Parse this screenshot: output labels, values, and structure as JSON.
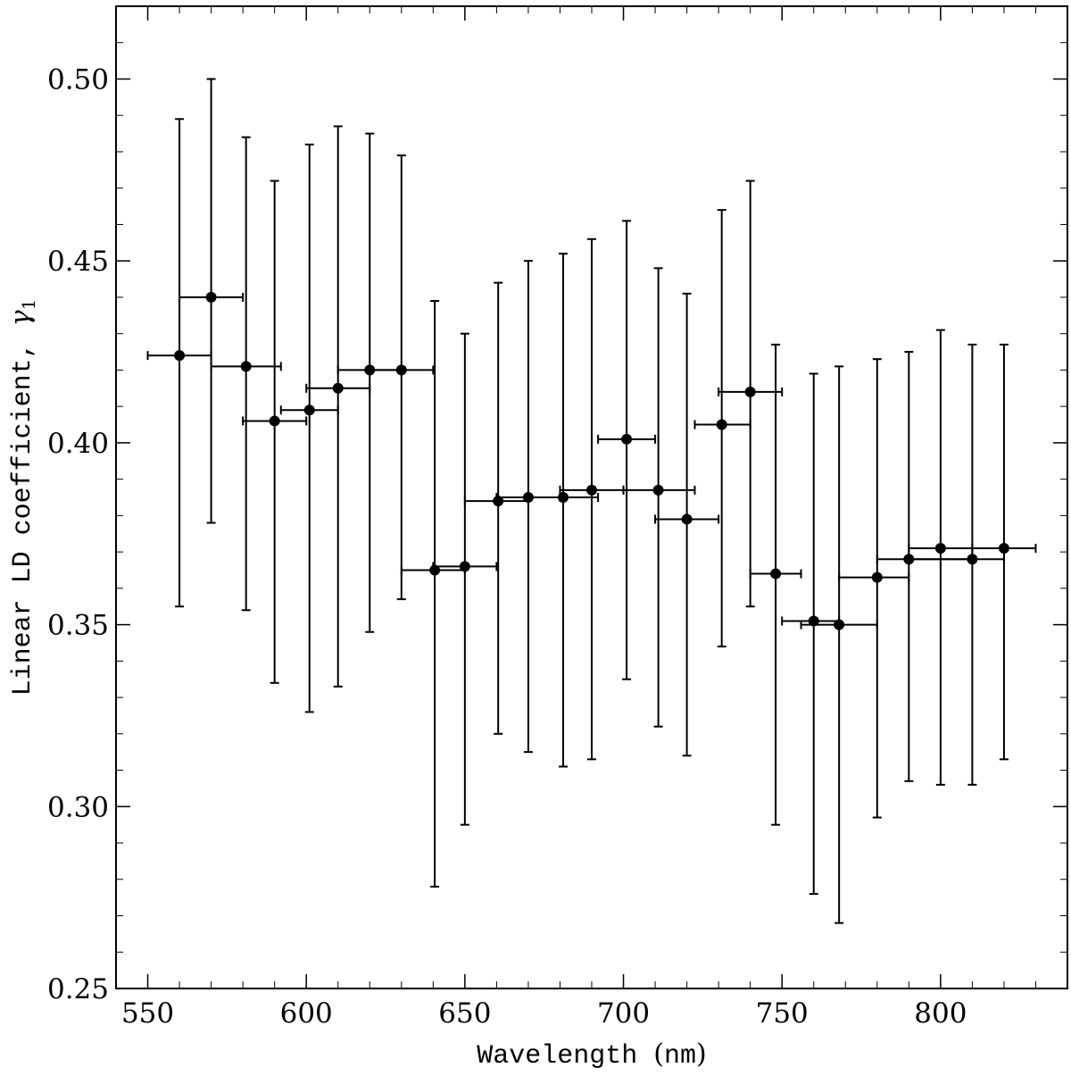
{
  "chart_data": {
    "type": "scatter",
    "title": "",
    "xlabel_main": "Wavelength",
    "xlabel_unit": "(nm)",
    "ylabel_main": "Linear LD coefficient,",
    "ylabel_symbol": "γ",
    "ylabel_subscript": "1",
    "xlim": [
      540,
      840
    ],
    "ylim": [
      0.25,
      0.52
    ],
    "x_ticks": [
      550,
      600,
      650,
      700,
      750,
      800
    ],
    "y_ticks": [
      0.25,
      0.3,
      0.35,
      0.4,
      0.45,
      0.5
    ],
    "x_tick_labels": [
      "550",
      "600",
      "650",
      "700",
      "750",
      "800"
    ],
    "y_tick_labels": [
      "0.25",
      "0.30",
      "0.35",
      "0.40",
      "0.45",
      "0.50"
    ],
    "grid": false,
    "marker_color": "#000000",
    "points": [
      {
        "x": 560.0,
        "y": 0.424,
        "xerr_low": 550.0,
        "xerr_high": 570.0,
        "yerr_low": 0.355,
        "yerr_high": 0.489
      },
      {
        "x": 570.0,
        "y": 0.44,
        "xerr_low": 560.0,
        "xerr_high": 580.0,
        "yerr_low": 0.378,
        "yerr_high": 0.5
      },
      {
        "x": 581.0,
        "y": 0.421,
        "xerr_low": 570.0,
        "xerr_high": 592.0,
        "yerr_low": 0.354,
        "yerr_high": 0.484
      },
      {
        "x": 590.0,
        "y": 0.406,
        "xerr_low": 580.0,
        "xerr_high": 600.0,
        "yerr_low": 0.334,
        "yerr_high": 0.472
      },
      {
        "x": 601.0,
        "y": 0.409,
        "xerr_low": 592.0,
        "xerr_high": 610.0,
        "yerr_low": 0.326,
        "yerr_high": 0.482
      },
      {
        "x": 610.0,
        "y": 0.415,
        "xerr_low": 600.0,
        "xerr_high": 620.0,
        "yerr_low": 0.333,
        "yerr_high": 0.487
      },
      {
        "x": 620.0,
        "y": 0.42,
        "xerr_low": 610.0,
        "xerr_high": 630.0,
        "yerr_low": 0.348,
        "yerr_high": 0.485
      },
      {
        "x": 630.0,
        "y": 0.42,
        "xerr_low": 620.0,
        "xerr_high": 640.0,
        "yerr_low": 0.357,
        "yerr_high": 0.479
      },
      {
        "x": 640.5,
        "y": 0.365,
        "xerr_low": 630.0,
        "xerr_high": 650.0,
        "yerr_low": 0.278,
        "yerr_high": 0.439
      },
      {
        "x": 650.0,
        "y": 0.366,
        "xerr_low": 640.0,
        "xerr_high": 660.0,
        "yerr_low": 0.295,
        "yerr_high": 0.43
      },
      {
        "x": 660.5,
        "y": 0.384,
        "xerr_low": 650.0,
        "xerr_high": 670.0,
        "yerr_low": 0.32,
        "yerr_high": 0.444
      },
      {
        "x": 670.0,
        "y": 0.385,
        "xerr_low": 660.0,
        "xerr_high": 680.0,
        "yerr_low": 0.315,
        "yerr_high": 0.45
      },
      {
        "x": 681.0,
        "y": 0.385,
        "xerr_low": 670.0,
        "xerr_high": 692.0,
        "yerr_low": 0.311,
        "yerr_high": 0.452
      },
      {
        "x": 690.0,
        "y": 0.387,
        "xerr_low": 680.0,
        "xerr_high": 700.0,
        "yerr_low": 0.313,
        "yerr_high": 0.456
      },
      {
        "x": 701.0,
        "y": 0.401,
        "xerr_low": 692.0,
        "xerr_high": 710.0,
        "yerr_low": 0.335,
        "yerr_high": 0.461
      },
      {
        "x": 711.0,
        "y": 0.387,
        "xerr_low": 700.0,
        "xerr_high": 722.5,
        "yerr_low": 0.322,
        "yerr_high": 0.448
      },
      {
        "x": 720.0,
        "y": 0.379,
        "xerr_low": 710.0,
        "xerr_high": 730.0,
        "yerr_low": 0.314,
        "yerr_high": 0.441
      },
      {
        "x": 731.0,
        "y": 0.405,
        "xerr_low": 722.5,
        "xerr_high": 740.0,
        "yerr_low": 0.344,
        "yerr_high": 0.464
      },
      {
        "x": 740.0,
        "y": 0.414,
        "xerr_low": 730.0,
        "xerr_high": 750.0,
        "yerr_low": 0.355,
        "yerr_high": 0.472
      },
      {
        "x": 748.0,
        "y": 0.364,
        "xerr_low": 740.0,
        "xerr_high": 756.0,
        "yerr_low": 0.295,
        "yerr_high": 0.427
      },
      {
        "x": 760.0,
        "y": 0.351,
        "xerr_low": 750.0,
        "xerr_high": 768.0,
        "yerr_low": 0.276,
        "yerr_high": 0.419
      },
      {
        "x": 768.0,
        "y": 0.35,
        "xerr_low": 756.0,
        "xerr_high": 780.0,
        "yerr_low": 0.268,
        "yerr_high": 0.421
      },
      {
        "x": 780.0,
        "y": 0.363,
        "xerr_low": 768.0,
        "xerr_high": 790.0,
        "yerr_low": 0.297,
        "yerr_high": 0.423
      },
      {
        "x": 790.0,
        "y": 0.368,
        "xerr_low": 780.0,
        "xerr_high": 810.0,
        "yerr_low": 0.307,
        "yerr_high": 0.425
      },
      {
        "x": 800.0,
        "y": 0.371,
        "xerr_low": 790.0,
        "xerr_high": 810.0,
        "yerr_low": 0.306,
        "yerr_high": 0.431
      },
      {
        "x": 810.0,
        "y": 0.368,
        "xerr_low": 790.0,
        "xerr_high": 820.0,
        "yerr_low": 0.306,
        "yerr_high": 0.427
      },
      {
        "x": 820.0,
        "y": 0.371,
        "xerr_low": 810.0,
        "xerr_high": 830.0,
        "yerr_low": 0.313,
        "yerr_high": 0.427
      }
    ]
  }
}
